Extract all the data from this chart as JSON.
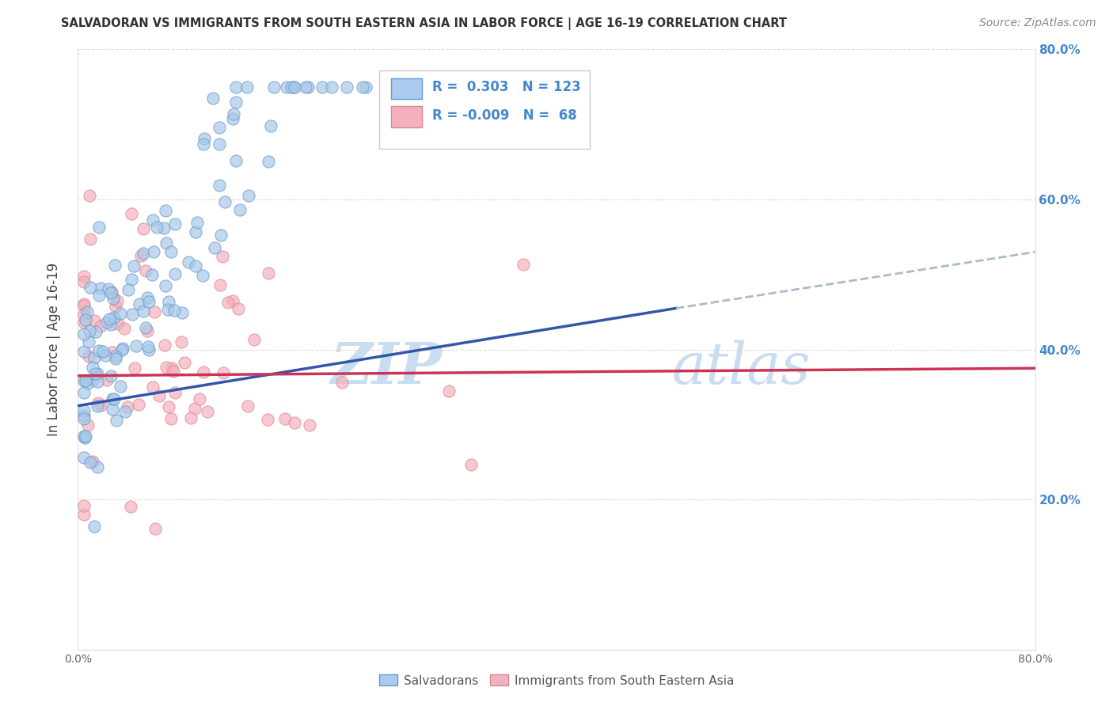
{
  "title": "SALVADORAN VS IMMIGRANTS FROM SOUTH EASTERN ASIA IN LABOR FORCE | AGE 16-19 CORRELATION CHART",
  "source": "Source: ZipAtlas.com",
  "ylabel": "In Labor Force | Age 16-19",
  "xlim": [
    0.0,
    0.8
  ],
  "ylim": [
    0.0,
    0.8
  ],
  "xticks": [
    0.0,
    0.8
  ],
  "yticks": [
    0.2,
    0.4,
    0.6,
    0.8
  ],
  "xticklabels": [
    "0.0%",
    "80.0%"
  ],
  "yticklabels_left": [
    "20.0%",
    "40.0%",
    "60.0%",
    "80.0%"
  ],
  "yticklabels_right": [
    "20.0%",
    "40.0%",
    "60.0%",
    "80.0%"
  ],
  "blue_R": 0.303,
  "blue_N": 123,
  "pink_R": -0.009,
  "pink_N": 68,
  "blue_dot_color": "#a8c8e8",
  "blue_dot_edge": "#6699cc",
  "pink_dot_color": "#f4b0c0",
  "pink_dot_edge": "#dd8888",
  "blue_line_color": "#3355aa",
  "pink_line_color": "#cc3355",
  "dashed_line_color": "#aabbcc",
  "grid_color": "#dddddd",
  "background_color": "#ffffff",
  "legend_label_blue": "Salvadorans",
  "legend_label_pink": "Immigrants from South Eastern Asia",
  "watermark_zip_color": "#c8ddf0",
  "watermark_atlas_color": "#c8ddf0",
  "right_axis_color": "#4488cc",
  "blue_trend_x0": 0.0,
  "blue_trend_y0": 0.325,
  "blue_trend_x1": 0.5,
  "blue_trend_y1": 0.455,
  "pink_trend_x0": 0.0,
  "pink_trend_y0": 0.365,
  "pink_trend_x1": 0.8,
  "pink_trend_y1": 0.375,
  "dashed_trend_x0": 0.5,
  "dashed_trend_y0": 0.455,
  "dashed_trend_x1": 0.8,
  "dashed_trend_y1": 0.53
}
